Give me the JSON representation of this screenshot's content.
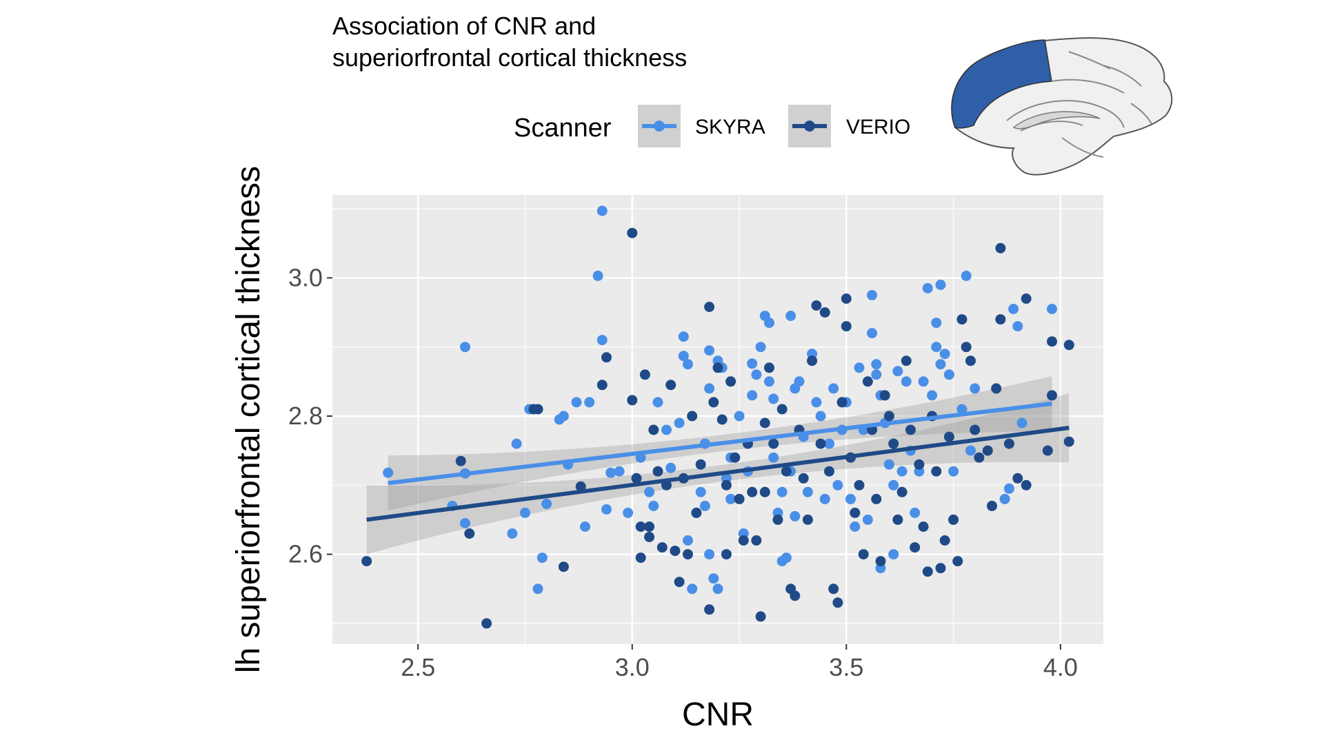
{
  "chart_data": {
    "type": "scatter",
    "title_lines": [
      "Association of CNR and",
      "superiorfrontal cortical thickness"
    ],
    "xlabel": "CNR",
    "ylabel": "lh superiorfrontal cortical thickness",
    "xlim": [
      2.3,
      4.1
    ],
    "ylim": [
      2.47,
      3.12
    ],
    "xticks": [
      2.5,
      3.0,
      3.5,
      4.0
    ],
    "xtick_labels": [
      "2.5",
      "3.0",
      "3.5",
      "4.0"
    ],
    "yticks": [
      2.6,
      2.8,
      3.0
    ],
    "ytick_labels": [
      "2.6",
      "2.8",
      "3.0"
    ],
    "grid": true,
    "legend": {
      "title": "Scanner",
      "position": "top",
      "entries": [
        "SKYRA",
        "VERIO"
      ]
    },
    "series": [
      {
        "name": "SKYRA",
        "color": "#4a8fe7",
        "fit": {
          "x": [
            2.43,
            3.98
          ],
          "y": [
            2.703,
            2.818
          ],
          "ci_half_width_ends": 0.04,
          "ci_half_width_mid": 0.012
        },
        "points": [
          [
            2.43,
            2.718
          ],
          [
            2.58,
            2.67
          ],
          [
            2.61,
            2.9
          ],
          [
            2.61,
            2.717
          ],
          [
            2.61,
            2.645
          ],
          [
            2.72,
            2.63
          ],
          [
            2.73,
            2.76
          ],
          [
            2.75,
            2.66
          ],
          [
            2.76,
            2.81
          ],
          [
            2.78,
            2.55
          ],
          [
            2.79,
            2.595
          ],
          [
            2.8,
            2.673
          ],
          [
            2.83,
            2.795
          ],
          [
            2.84,
            2.8
          ],
          [
            2.85,
            2.73
          ],
          [
            2.87,
            2.82
          ],
          [
            2.89,
            2.64
          ],
          [
            2.9,
            2.82
          ],
          [
            2.92,
            3.003
          ],
          [
            2.93,
            3.097
          ],
          [
            2.93,
            2.91
          ],
          [
            2.94,
            2.665
          ],
          [
            2.95,
            2.718
          ],
          [
            2.97,
            2.72
          ],
          [
            2.99,
            2.66
          ],
          [
            3.02,
            2.74
          ],
          [
            3.04,
            2.69
          ],
          [
            3.05,
            2.67
          ],
          [
            3.06,
            2.82
          ],
          [
            3.08,
            2.78
          ],
          [
            3.09,
            2.725
          ],
          [
            3.11,
            2.79
          ],
          [
            3.12,
            2.915
          ],
          [
            3.12,
            2.887
          ],
          [
            3.13,
            2.875
          ],
          [
            3.13,
            2.62
          ],
          [
            3.14,
            2.55
          ],
          [
            3.15,
            2.66
          ],
          [
            3.16,
            2.69
          ],
          [
            3.17,
            2.76
          ],
          [
            3.17,
            2.67
          ],
          [
            3.18,
            2.895
          ],
          [
            3.18,
            2.84
          ],
          [
            3.18,
            2.6
          ],
          [
            3.19,
            2.565
          ],
          [
            3.2,
            2.88
          ],
          [
            3.2,
            2.55
          ],
          [
            3.21,
            2.87
          ],
          [
            3.22,
            2.71
          ],
          [
            3.23,
            2.74
          ],
          [
            3.23,
            2.68
          ],
          [
            3.25,
            2.8
          ],
          [
            3.26,
            2.63
          ],
          [
            3.27,
            2.72
          ],
          [
            3.28,
            2.876
          ],
          [
            3.28,
            2.83
          ],
          [
            3.29,
            2.86
          ],
          [
            3.3,
            2.9
          ],
          [
            3.31,
            2.945
          ],
          [
            3.32,
            2.935
          ],
          [
            3.32,
            2.85
          ],
          [
            3.33,
            2.825
          ],
          [
            3.33,
            2.74
          ],
          [
            3.34,
            2.66
          ],
          [
            3.35,
            2.59
          ],
          [
            3.35,
            2.69
          ],
          [
            3.36,
            2.595
          ],
          [
            3.37,
            2.945
          ],
          [
            3.37,
            2.72
          ],
          [
            3.38,
            2.84
          ],
          [
            3.38,
            2.655
          ],
          [
            3.39,
            2.85
          ],
          [
            3.4,
            2.77
          ],
          [
            3.41,
            2.69
          ],
          [
            3.42,
            2.89
          ],
          [
            3.43,
            2.82
          ],
          [
            3.44,
            2.8
          ],
          [
            3.45,
            2.68
          ],
          [
            3.46,
            2.76
          ],
          [
            3.47,
            2.84
          ],
          [
            3.48,
            2.7
          ],
          [
            3.49,
            2.78
          ],
          [
            3.5,
            2.82
          ],
          [
            3.51,
            2.68
          ],
          [
            3.52,
            2.64
          ],
          [
            3.53,
            2.87
          ],
          [
            3.54,
            2.78
          ],
          [
            3.55,
            2.65
          ],
          [
            3.56,
            2.975
          ],
          [
            3.56,
            2.92
          ],
          [
            3.57,
            2.875
          ],
          [
            3.57,
            2.86
          ],
          [
            3.58,
            2.83
          ],
          [
            3.58,
            2.58
          ],
          [
            3.59,
            2.79
          ],
          [
            3.6,
            2.73
          ],
          [
            3.61,
            2.6
          ],
          [
            3.61,
            2.7
          ],
          [
            3.62,
            2.865
          ],
          [
            3.63,
            2.72
          ],
          [
            3.64,
            2.85
          ],
          [
            3.65,
            2.75
          ],
          [
            3.66,
            2.66
          ],
          [
            3.67,
            2.72
          ],
          [
            3.68,
            2.85
          ],
          [
            3.69,
            2.985
          ],
          [
            3.7,
            2.83
          ],
          [
            3.71,
            2.935
          ],
          [
            3.71,
            2.9
          ],
          [
            3.72,
            2.99
          ],
          [
            3.72,
            2.875
          ],
          [
            3.73,
            2.89
          ],
          [
            3.74,
            2.86
          ],
          [
            3.75,
            2.72
          ],
          [
            3.77,
            2.81
          ],
          [
            3.78,
            3.003
          ],
          [
            3.79,
            2.75
          ],
          [
            3.8,
            2.84
          ],
          [
            3.87,
            2.68
          ],
          [
            3.88,
            2.695
          ],
          [
            3.89,
            2.955
          ],
          [
            3.9,
            2.93
          ],
          [
            3.91,
            2.79
          ],
          [
            3.98,
            2.955
          ]
        ]
      },
      {
        "name": "VERIO",
        "color": "#1f4a87",
        "fit": {
          "x": [
            2.38,
            4.02
          ],
          "y": [
            2.65,
            2.783
          ],
          "ci_half_width_ends": 0.05,
          "ci_half_width_mid": 0.012
        },
        "points": [
          [
            2.38,
            2.59
          ],
          [
            2.6,
            2.735
          ],
          [
            2.62,
            2.63
          ],
          [
            2.66,
            2.5
          ],
          [
            2.77,
            2.81
          ],
          [
            2.78,
            2.81
          ],
          [
            2.84,
            2.582
          ],
          [
            2.88,
            2.698
          ],
          [
            2.93,
            2.845
          ],
          [
            2.94,
            2.885
          ],
          [
            3.0,
            2.823
          ],
          [
            3.0,
            3.065
          ],
          [
            3.01,
            2.71
          ],
          [
            3.02,
            2.64
          ],
          [
            3.02,
            2.595
          ],
          [
            3.03,
            2.86
          ],
          [
            3.04,
            2.64
          ],
          [
            3.04,
            2.625
          ],
          [
            3.05,
            2.78
          ],
          [
            3.06,
            2.72
          ],
          [
            3.07,
            2.61
          ],
          [
            3.08,
            2.7
          ],
          [
            3.09,
            2.845
          ],
          [
            3.1,
            2.605
          ],
          [
            3.11,
            2.56
          ],
          [
            3.12,
            2.71
          ],
          [
            3.13,
            2.6
          ],
          [
            3.14,
            2.8
          ],
          [
            3.15,
            2.66
          ],
          [
            3.16,
            2.73
          ],
          [
            3.18,
            2.52
          ],
          [
            3.18,
            2.958
          ],
          [
            3.19,
            2.82
          ],
          [
            3.2,
            2.87
          ],
          [
            3.21,
            2.795
          ],
          [
            3.22,
            2.6
          ],
          [
            3.22,
            2.7
          ],
          [
            3.23,
            2.85
          ],
          [
            3.24,
            2.74
          ],
          [
            3.25,
            2.68
          ],
          [
            3.26,
            2.62
          ],
          [
            3.27,
            2.76
          ],
          [
            3.28,
            2.69
          ],
          [
            3.29,
            2.62
          ],
          [
            3.3,
            2.51
          ],
          [
            3.31,
            2.79
          ],
          [
            3.31,
            2.69
          ],
          [
            3.32,
            2.87
          ],
          [
            3.33,
            2.76
          ],
          [
            3.34,
            2.65
          ],
          [
            3.35,
            2.81
          ],
          [
            3.36,
            2.72
          ],
          [
            3.37,
            2.55
          ],
          [
            3.38,
            2.54
          ],
          [
            3.39,
            2.78
          ],
          [
            3.4,
            2.71
          ],
          [
            3.41,
            2.65
          ],
          [
            3.42,
            2.88
          ],
          [
            3.43,
            2.96
          ],
          [
            3.44,
            2.76
          ],
          [
            3.45,
            2.95
          ],
          [
            3.46,
            2.72
          ],
          [
            3.47,
            2.55
          ],
          [
            3.48,
            2.53
          ],
          [
            3.49,
            2.82
          ],
          [
            3.5,
            2.97
          ],
          [
            3.5,
            2.93
          ],
          [
            3.51,
            2.74
          ],
          [
            3.52,
            2.66
          ],
          [
            3.53,
            2.7
          ],
          [
            3.54,
            2.6
          ],
          [
            3.55,
            2.85
          ],
          [
            3.56,
            2.78
          ],
          [
            3.57,
            2.68
          ],
          [
            3.58,
            2.59
          ],
          [
            3.59,
            2.83
          ],
          [
            3.6,
            2.8
          ],
          [
            3.61,
            2.76
          ],
          [
            3.62,
            2.65
          ],
          [
            3.63,
            2.69
          ],
          [
            3.64,
            2.88
          ],
          [
            3.65,
            2.78
          ],
          [
            3.66,
            2.61
          ],
          [
            3.67,
            2.73
          ],
          [
            3.68,
            2.64
          ],
          [
            3.69,
            2.575
          ],
          [
            3.7,
            2.8
          ],
          [
            3.71,
            2.72
          ],
          [
            3.72,
            2.58
          ],
          [
            3.73,
            2.62
          ],
          [
            3.74,
            2.77
          ],
          [
            3.75,
            2.65
          ],
          [
            3.76,
            2.59
          ],
          [
            3.77,
            2.94
          ],
          [
            3.78,
            2.9
          ],
          [
            3.79,
            2.88
          ],
          [
            3.8,
            2.78
          ],
          [
            3.81,
            2.74
          ],
          [
            3.83,
            2.75
          ],
          [
            3.84,
            2.67
          ],
          [
            3.85,
            2.84
          ],
          [
            3.86,
            3.043
          ],
          [
            3.86,
            2.94
          ],
          [
            3.88,
            2.76
          ],
          [
            3.9,
            2.71
          ],
          [
            3.92,
            2.7
          ],
          [
            3.92,
            2.97
          ],
          [
            3.97,
            2.75
          ],
          [
            3.98,
            2.908
          ],
          [
            3.98,
            2.83
          ],
          [
            4.02,
            2.763
          ],
          [
            4.02,
            2.903
          ]
        ]
      }
    ]
  }
}
